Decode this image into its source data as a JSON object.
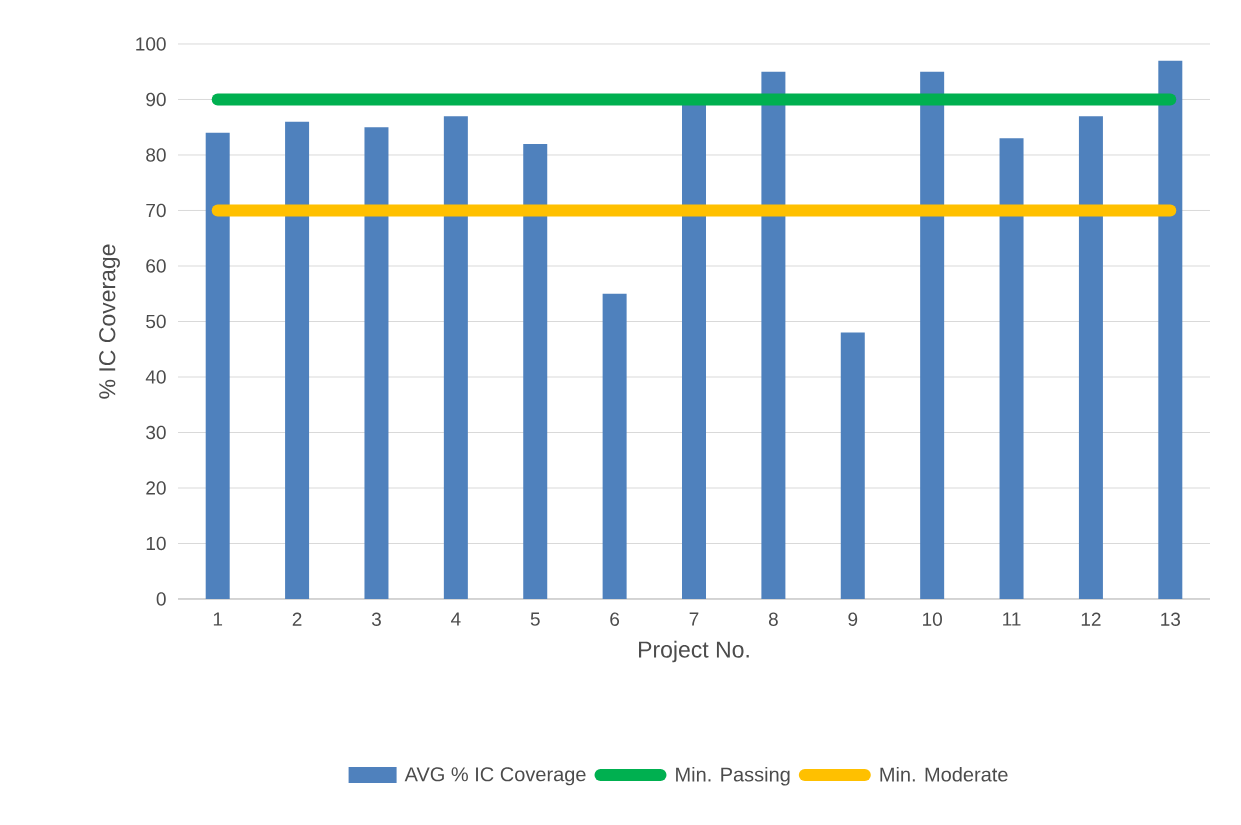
{
  "chart_data": {
    "type": "bar",
    "xlabel": "Project No.",
    "ylabel": "% IC Coverage",
    "categories": [
      "1",
      "2",
      "3",
      "4",
      "5",
      "6",
      "7",
      "8",
      "9",
      "10",
      "11",
      "12",
      "13"
    ],
    "series": [
      {
        "name": "AVG % IC Coverage",
        "color": "#4f81bd",
        "values": [
          84,
          86,
          85,
          87,
          82,
          55,
          89,
          95,
          48,
          95,
          83,
          87,
          97
        ]
      },
      {
        "name": "Min. Passing",
        "type": "line",
        "color": "#00b050",
        "values": [
          90,
          90,
          90,
          90,
          90,
          90,
          90,
          90,
          90,
          90,
          90,
          90,
          90
        ]
      },
      {
        "name": "Min. Moderate",
        "type": "line",
        "color": "#ffc000",
        "values": [
          70,
          70,
          70,
          70,
          70,
          70,
          70,
          70,
          70,
          70,
          70,
          70,
          70
        ]
      }
    ],
    "ylim": [
      0,
      100
    ],
    "yticks": [
      0,
      10,
      20,
      30,
      40,
      50,
      60,
      70,
      80,
      90,
      100
    ],
    "grid": "y",
    "legend": "bottom",
    "marker": "none"
  }
}
